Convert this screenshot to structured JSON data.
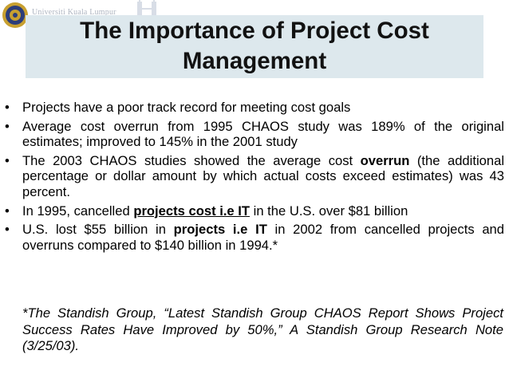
{
  "header": {
    "logo_icon": "university-crest-icon",
    "logo_text": "Universiti Kuala Lumpur",
    "towers_icon": "twin-towers-icon"
  },
  "slide": {
    "title_line1": "The Importance of Project Cost",
    "title_line2": "Management",
    "bullets": [
      {
        "text": "Projects have a poor track record for meeting cost goals"
      },
      {
        "text": "Average cost overrun from 1995 CHAOS study was 189% of the original estimates; improved to 145% in the 2001 study"
      },
      {
        "pre": "The 2003 CHAOS studies showed the average cost ",
        "em": "overrun",
        "post": " (the additional percentage or dollar amount by which actual costs exceed estimates) was 43 percent."
      },
      {
        "pre": "In 1995, cancelled ",
        "em": "projects cost i.e IT",
        "post": " in the U.S. over $81 billion"
      },
      {
        "pre": "U.S. lost $55 billion in ",
        "em": "projects i.e IT",
        "post": " in 2002 from cancelled projects and overruns compared to $140 billion in 1994.*"
      }
    ],
    "footnote": "*The Standish Group, “Latest Standish Group CHAOS Report Shows Project Success Rates Have Improved by 50%,” A Standish Group Research Note (3/25/03)."
  },
  "colors": {
    "title_band": "#dde8ed",
    "crest_gold": "#c8a030",
    "crest_blue": "#2c3d7a"
  }
}
